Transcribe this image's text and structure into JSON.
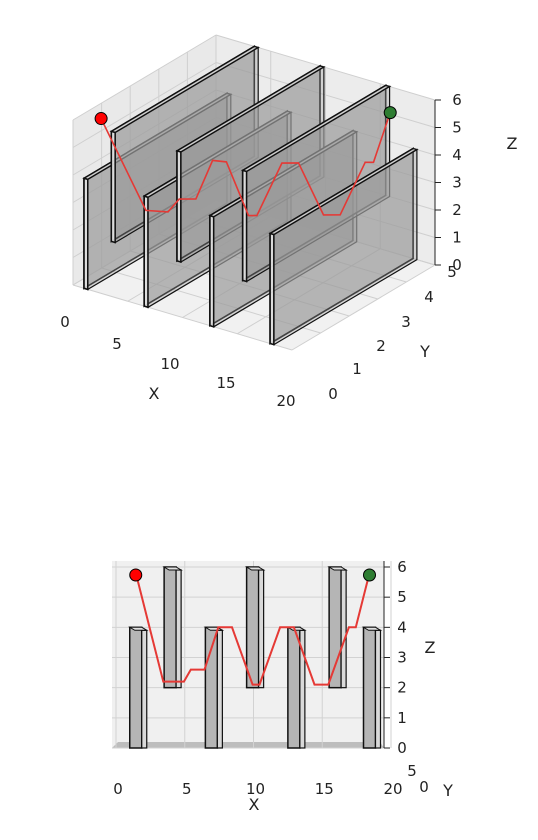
{
  "chart_data": [
    {
      "type": "line",
      "projection": "3d-perspective",
      "xlabel": "X",
      "ylabel": "Y",
      "zlabel": "Z",
      "xlim": [
        0,
        20
      ],
      "ylim": [
        0,
        5
      ],
      "zlim": [
        0,
        6
      ],
      "xticks": [
        "0",
        "5",
        "10",
        "15",
        "20"
      ],
      "yticks": [
        "0",
        "1",
        "2",
        "3",
        "4",
        "5"
      ],
      "zticks": [
        "0",
        "1",
        "2",
        "3",
        "4",
        "5",
        "6"
      ],
      "grid": true,
      "colors": {
        "path": "#e53935",
        "start": "#ff0000",
        "goal": "#2e7d32",
        "wall": "#9e9e9e"
      }
    },
    {
      "type": "line",
      "projection": "3d-front",
      "xlabel": "X",
      "ylabel": "Y",
      "zlabel": "Z",
      "xlim": [
        0,
        20
      ],
      "ylim": [
        0,
        5
      ],
      "zlim": [
        0,
        6
      ],
      "xticks": [
        "0",
        "5",
        "10",
        "15",
        "20"
      ],
      "yticks": [
        "0",
        "5"
      ],
      "zticks": [
        "0",
        "1",
        "2",
        "3",
        "4",
        "5",
        "6"
      ],
      "grid": true,
      "colors": {
        "path": "#e53935",
        "start": "#ff0000",
        "goal": "#2e7d32",
        "wall": "#9e9e9e"
      }
    }
  ],
  "scene": {
    "walls": [
      {
        "x": 1.0,
        "z": [
          0,
          4
        ]
      },
      {
        "x": 3.5,
        "z": [
          2,
          6
        ]
      },
      {
        "x": 6.5,
        "z": [
          0,
          4
        ]
      },
      {
        "x": 9.5,
        "z": [
          2,
          6
        ]
      },
      {
        "x": 12.5,
        "z": [
          0,
          4
        ]
      },
      {
        "x": 15.5,
        "z": [
          2,
          6
        ]
      },
      {
        "x": 18.0,
        "z": [
          0,
          4
        ]
      }
    ],
    "path": [
      [
        1.0,
        0.6,
        5.8
      ],
      [
        2.0,
        1.0,
        4.0
      ],
      [
        3.0,
        1.4,
        2.2
      ],
      [
        4.5,
        1.6,
        2.2
      ],
      [
        5.0,
        1.8,
        2.6
      ],
      [
        6.0,
        2.0,
        2.6
      ],
      [
        7.0,
        2.2,
        4.0
      ],
      [
        8.0,
        2.3,
        4.0
      ],
      [
        9.5,
        2.5,
        2.1
      ],
      [
        10.0,
        2.6,
        2.1
      ],
      [
        11.5,
        2.9,
        4.0
      ],
      [
        12.5,
        3.1,
        4.0
      ],
      [
        14.0,
        3.4,
        2.1
      ],
      [
        15.0,
        3.6,
        2.1
      ],
      [
        16.5,
        3.9,
        4.0
      ],
      [
        17.0,
        4.0,
        4.0
      ],
      [
        18.0,
        4.2,
        5.8
      ]
    ],
    "start": [
      1.0,
      0.6,
      5.8
    ],
    "goal": [
      18.0,
      4.2,
      5.8
    ]
  }
}
